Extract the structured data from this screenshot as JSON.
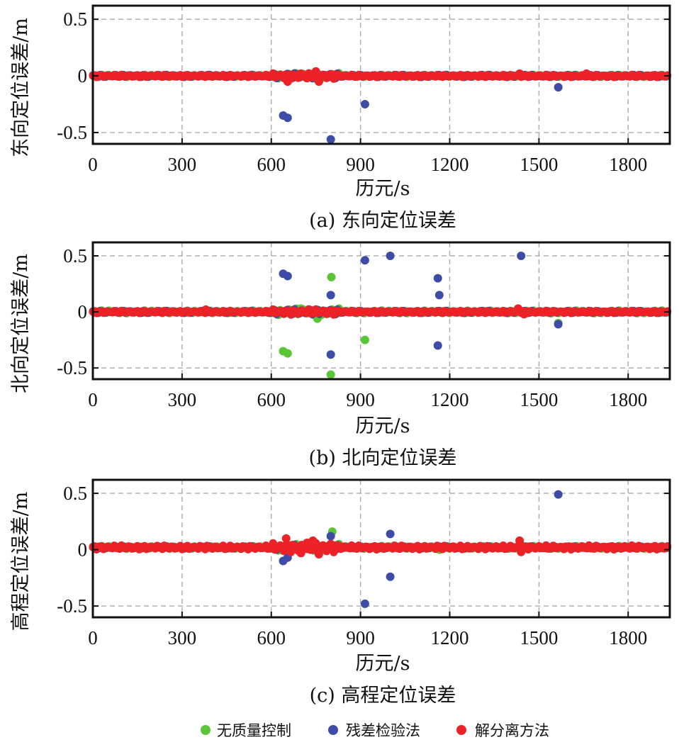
{
  "chart_data": [
    {
      "type": "scatter",
      "panel": "a",
      "caption": "(a) 东向定位误差",
      "xlabel": "历元/s",
      "ylabel": "东向定位误差/m",
      "xlim": [
        0,
        1940
      ],
      "ylim": [
        -0.6,
        0.62
      ],
      "xticks": [
        0,
        300,
        600,
        900,
        1200,
        1500,
        1800
      ],
      "yticks": [
        0.5,
        0,
        -0.5
      ],
      "ytick_labels": [
        "0.5",
        "0",
        "-0.5"
      ],
      "grid": true,
      "series": [
        {
          "name": "无质量控制",
          "color": "#5ac537",
          "x": [
            1165
          ],
          "y": [
            0.0
          ],
          "band": {
            "amp": 0.012
          }
        },
        {
          "name": "残差检验法",
          "color": "#3f4ca7",
          "x": [
            640,
            655,
            800,
            915,
            1565
          ],
          "y": [
            -0.35,
            -0.37,
            -0.56,
            -0.25,
            -0.1
          ],
          "band": {
            "amp": 0.012
          }
        },
        {
          "name": "解分离方法",
          "color": "#ec2227",
          "x": [
            655,
            700,
            720,
            750,
            760,
            1435,
            1660
          ],
          "y": [
            -0.05,
            0.02,
            -0.02,
            0.04,
            -0.05,
            0.02,
            0.02
          ],
          "band": {
            "amp": 0.012
          }
        }
      ]
    },
    {
      "type": "scatter",
      "panel": "b",
      "caption": "(b) 北向定位误差",
      "xlabel": "历元/s",
      "ylabel": "北向定位误差/m",
      "xlim": [
        0,
        1940
      ],
      "ylim": [
        -0.6,
        0.62
      ],
      "xticks": [
        0,
        300,
        600,
        900,
        1200,
        1500,
        1800
      ],
      "yticks": [
        0.5,
        0,
        -0.5
      ],
      "ytick_labels": [
        "0.5",
        "0",
        "-0.5"
      ],
      "grid": true,
      "series": [
        {
          "name": "无质量控制",
          "color": "#5ac537",
          "x": [
            640,
            655,
            800,
            802,
            915,
            1565,
            755,
            700
          ],
          "y": [
            -0.35,
            -0.37,
            -0.56,
            0.31,
            -0.25,
            -0.1,
            -0.06,
            0.03
          ],
          "band": {
            "amp": 0.015
          }
        },
        {
          "name": "残差检验法",
          "color": "#3f4ca7",
          "x": [
            640,
            655,
            800,
            800,
            915,
            1000,
            1160,
            1165,
            1160,
            1440,
            1565
          ],
          "y": [
            0.34,
            0.32,
            0.15,
            -0.38,
            0.46,
            0.5,
            0.3,
            0.15,
            -0.3,
            0.5,
            -0.11
          ],
          "band": {
            "amp": 0.012
          }
        },
        {
          "name": "解分离方法",
          "color": "#ec2227",
          "x": [
            1430,
            1450,
            380
          ],
          "y": [
            0.03,
            -0.02,
            0.02
          ],
          "band": {
            "amp": 0.012
          }
        }
      ]
    },
    {
      "type": "scatter",
      "panel": "c",
      "caption": "(c) 高程定位误差",
      "xlabel": "历元/s",
      "ylabel": "高程定位误差/m",
      "xlim": [
        0,
        1940
      ],
      "ylim": [
        -0.6,
        0.62
      ],
      "xticks": [
        0,
        300,
        600,
        900,
        1200,
        1500,
        1800
      ],
      "yticks": [
        0.5,
        0,
        -0.5
      ],
      "ytick_labels": [
        "0.5",
        "0",
        "-0.5"
      ],
      "grid": true,
      "series": [
        {
          "name": "无质量控制",
          "color": "#5ac537",
          "x": [
            805,
            1165
          ],
          "y": [
            0.16,
            0.0
          ],
          "band": {
            "amp": 0.015
          }
        },
        {
          "name": "残差检验法",
          "color": "#3f4ca7",
          "x": [
            640,
            655,
            800,
            915,
            1000,
            1000,
            1565
          ],
          "y": [
            -0.1,
            -0.07,
            0.12,
            -0.48,
            0.14,
            -0.24,
            0.49
          ],
          "band": {
            "amp": 0.012
          }
        },
        {
          "name": "解分离方法",
          "color": "#ec2227",
          "x": [
            650,
            700,
            720,
            740,
            760,
            800,
            1435,
            1440
          ],
          "y": [
            0.1,
            -0.03,
            0.06,
            0.08,
            -0.04,
            0.05,
            0.08,
            -0.02
          ],
          "band": {
            "amp": 0.02
          }
        }
      ]
    }
  ],
  "legend": [
    {
      "label": "无质量控制",
      "color": "#5ac537"
    },
    {
      "label": "残差检验法",
      "color": "#3f4ca7"
    },
    {
      "label": "解分离方法",
      "color": "#ec2227"
    }
  ]
}
